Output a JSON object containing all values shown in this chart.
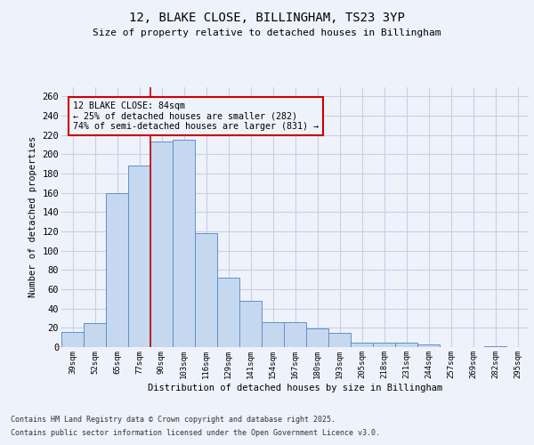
{
  "title1": "12, BLAKE CLOSE, BILLINGHAM, TS23 3YP",
  "title2": "Size of property relative to detached houses in Billingham",
  "xlabel": "Distribution of detached houses by size in Billingham",
  "ylabel": "Number of detached properties",
  "categories": [
    "39sqm",
    "52sqm",
    "65sqm",
    "77sqm",
    "90sqm",
    "103sqm",
    "116sqm",
    "129sqm",
    "141sqm",
    "154sqm",
    "167sqm",
    "180sqm",
    "193sqm",
    "205sqm",
    "218sqm",
    "231sqm",
    "244sqm",
    "257sqm",
    "269sqm",
    "282sqm",
    "295sqm"
  ],
  "values": [
    16,
    25,
    160,
    188,
    213,
    215,
    118,
    72,
    48,
    26,
    26,
    19,
    15,
    5,
    5,
    5,
    3,
    0,
    0,
    1,
    0
  ],
  "bar_color": "#c5d8f0",
  "bar_edge_color": "#6090c8",
  "vline_x": 3.5,
  "vline_color": "#cc0000",
  "annotation_text": "12 BLAKE CLOSE: 84sqm\n← 25% of detached houses are smaller (282)\n74% of semi-detached houses are larger (831) →",
  "annotation_box_color": "#cc0000",
  "ylim": [
    0,
    270
  ],
  "yticks": [
    0,
    20,
    40,
    60,
    80,
    100,
    120,
    140,
    160,
    180,
    200,
    220,
    240,
    260
  ],
  "footer_line1": "Contains HM Land Registry data © Crown copyright and database right 2025.",
  "footer_line2": "Contains public sector information licensed under the Open Government Licence v3.0.",
  "bg_color": "#eef2fb",
  "grid_color": "#c8cfe8"
}
